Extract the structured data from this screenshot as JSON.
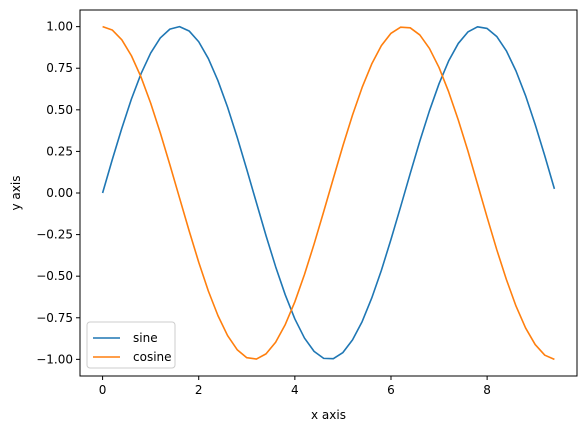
{
  "chart_data": {
    "type": "line",
    "title": "",
    "xlabel": "x axis",
    "ylabel": "y axis",
    "xlim": [
      -0.47,
      9.87
    ],
    "ylim": [
      -1.1,
      1.1
    ],
    "x_ticks": [
      0,
      2,
      4,
      6,
      8
    ],
    "x_tick_labels": [
      "0",
      "2",
      "4",
      "6",
      "8"
    ],
    "y_ticks": [
      -1.0,
      -0.75,
      -0.5,
      -0.25,
      0.0,
      0.25,
      0.5,
      0.75,
      1.0
    ],
    "y_tick_labels": [
      "−1.00",
      "−0.75",
      "−0.50",
      "−0.25",
      "0.00",
      "0.25",
      "0.50",
      "0.75",
      "1.00"
    ],
    "grid": false,
    "legend_position": "lower-left",
    "x": [
      0.0,
      0.2,
      0.4,
      0.6,
      0.8,
      1.0,
      1.2,
      1.4,
      1.6,
      1.8,
      2.0,
      2.2,
      2.4,
      2.6,
      2.8,
      3.0,
      3.2,
      3.4,
      3.6,
      3.8,
      4.0,
      4.2,
      4.4,
      4.6,
      4.8,
      5.0,
      5.2,
      5.4,
      5.6,
      5.8,
      6.0,
      6.2,
      6.4,
      6.6,
      6.8,
      7.0,
      7.2,
      7.4,
      7.6,
      7.8,
      8.0,
      8.2,
      8.4,
      8.6,
      8.8,
      9.0,
      9.2,
      9.4
    ],
    "series": [
      {
        "name": "sine",
        "color": "#1f77b4",
        "values": [
          0.0,
          0.199,
          0.389,
          0.565,
          0.717,
          0.841,
          0.932,
          0.985,
          1.0,
          0.974,
          0.909,
          0.808,
          0.675,
          0.516,
          0.335,
          0.141,
          -0.058,
          -0.256,
          -0.443,
          -0.612,
          -0.757,
          -0.872,
          -0.952,
          -0.994,
          -0.996,
          -0.959,
          -0.883,
          -0.773,
          -0.631,
          -0.465,
          -0.279,
          -0.083,
          0.117,
          0.312,
          0.494,
          0.657,
          0.794,
          0.899,
          0.968,
          0.999,
          0.989,
          0.941,
          0.855,
          0.734,
          0.585,
          0.412,
          0.223,
          0.025
        ]
      },
      {
        "name": "cosine",
        "color": "#ff7f0e",
        "values": [
          1.0,
          0.98,
          0.921,
          0.825,
          0.697,
          0.54,
          0.362,
          0.17,
          -0.029,
          -0.227,
          -0.416,
          -0.589,
          -0.737,
          -0.857,
          -0.942,
          -0.99,
          -0.998,
          -0.967,
          -0.897,
          -0.791,
          -0.654,
          -0.49,
          -0.307,
          -0.112,
          0.087,
          0.284,
          0.469,
          0.635,
          0.776,
          0.886,
          0.96,
          0.997,
          0.993,
          0.95,
          0.869,
          0.754,
          0.608,
          0.439,
          0.253,
          0.054,
          -0.146,
          -0.34,
          -0.519,
          -0.679,
          -0.811,
          -0.911,
          -0.975,
          -1.0
        ]
      }
    ]
  }
}
